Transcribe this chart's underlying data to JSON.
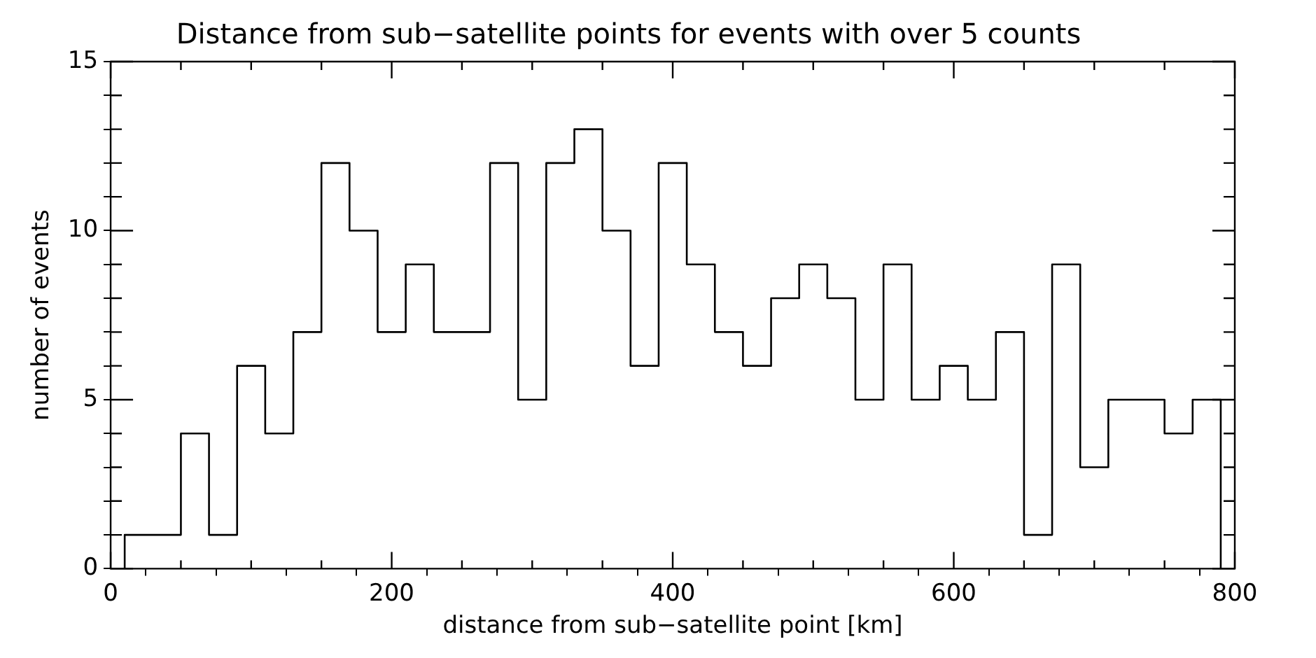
{
  "chart_data": {
    "type": "histogram",
    "title": "Distance from sub−satellite points for events with over 5 counts",
    "xlabel": "distance from sub−satellite point [km]",
    "ylabel": "number of events",
    "bins": [
      10,
      30,
      50,
      70,
      90,
      110,
      130,
      150,
      170,
      190,
      210,
      230,
      250,
      270,
      290,
      310,
      330,
      350,
      370,
      390,
      410,
      430,
      450,
      470,
      490,
      510,
      530,
      550,
      570,
      590,
      610,
      630,
      650,
      670,
      690,
      710,
      730,
      750,
      770,
      790
    ],
    "values": [
      1,
      1,
      4,
      1,
      6,
      4,
      7,
      12,
      10,
      7,
      9,
      7,
      7,
      12,
      5,
      12,
      13,
      10,
      6,
      12,
      9,
      7,
      6,
      8,
      9,
      8,
      5,
      9,
      5,
      6,
      5,
      7,
      1,
      9,
      3,
      5,
      5,
      4,
      5
    ],
    "color": "#000000",
    "xlim": [
      0,
      800
    ],
    "ylim": [
      0,
      15
    ],
    "xticks": [
      0,
      {
        "value": 50,
        "label": null
      },
      {
        "value": 100,
        "label": null
      },
      {
        "value": 150,
        "label": null
      },
      200,
      {
        "value": 250,
        "label": null
      },
      {
        "value": 300,
        "label": null
      },
      {
        "value": 350,
        "label": null
      },
      400,
      {
        "value": 450,
        "label": null
      },
      {
        "value": 500,
        "label": null
      },
      {
        "value": 550,
        "label": null
      },
      600,
      {
        "value": 650,
        "label": null
      },
      {
        "value": 700,
        "label": null
      },
      {
        "value": 750,
        "label": null
      },
      800
    ],
    "yticks": [
      0,
      {
        "value": 1,
        "label": null
      },
      {
        "value": 2,
        "label": null
      },
      {
        "value": 3,
        "label": null
      },
      {
        "value": 4,
        "label": null
      },
      5,
      {
        "value": 6,
        "label": null
      },
      {
        "value": 7,
        "label": null
      },
      {
        "value": 8,
        "label": null
      },
      {
        "value": 9,
        "label": null
      },
      10,
      {
        "value": 11,
        "label": null
      },
      {
        "value": 12,
        "label": null
      },
      {
        "value": 13,
        "label": null
      },
      {
        "value": 14,
        "label": null
      },
      15
    ],
    "grid": false,
    "legend": false
  }
}
